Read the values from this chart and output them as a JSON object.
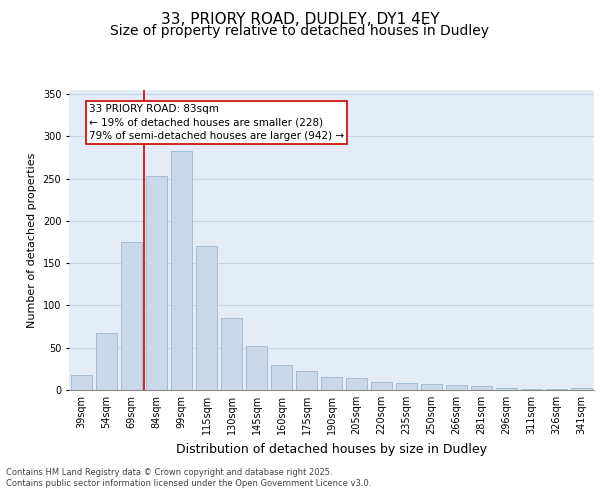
{
  "title_line1": "33, PRIORY ROAD, DUDLEY, DY1 4EY",
  "title_line2": "Size of property relative to detached houses in Dudley",
  "xlabel": "Distribution of detached houses by size in Dudley",
  "ylabel": "Number of detached properties",
  "categories": [
    "39sqm",
    "54sqm",
    "69sqm",
    "84sqm",
    "99sqm",
    "115sqm",
    "130sqm",
    "145sqm",
    "160sqm",
    "175sqm",
    "190sqm",
    "205sqm",
    "220sqm",
    "235sqm",
    "250sqm",
    "266sqm",
    "281sqm",
    "296sqm",
    "311sqm",
    "326sqm",
    "341sqm"
  ],
  "values": [
    18,
    68,
    175,
    253,
    283,
    170,
    85,
    52,
    30,
    22,
    15,
    14,
    10,
    8,
    7,
    6,
    5,
    2,
    1,
    1,
    2
  ],
  "bar_color": "#c9d9ea",
  "bar_edge_color": "#9ab8d0",
  "vline_color": "#cc0000",
  "vline_pos": 2.5,
  "annotation_text": "33 PRIORY ROAD: 83sqm\n← 19% of detached houses are smaller (228)\n79% of semi-detached houses are larger (942) →",
  "annotation_box_edgecolor": "#cc0000",
  "ylim": [
    0,
    355
  ],
  "yticks": [
    0,
    50,
    100,
    150,
    200,
    250,
    300,
    350
  ],
  "grid_color": "#c8d4e8",
  "background_color": "#e4ecf8",
  "footer_text": "Contains HM Land Registry data © Crown copyright and database right 2025.\nContains public sector information licensed under the Open Government Licence v3.0.",
  "title_fontsize": 11,
  "subtitle_fontsize": 10,
  "xlabel_fontsize": 9,
  "ylabel_fontsize": 8,
  "tick_fontsize": 7,
  "annotation_fontsize": 7.5,
  "footer_fontsize": 6
}
